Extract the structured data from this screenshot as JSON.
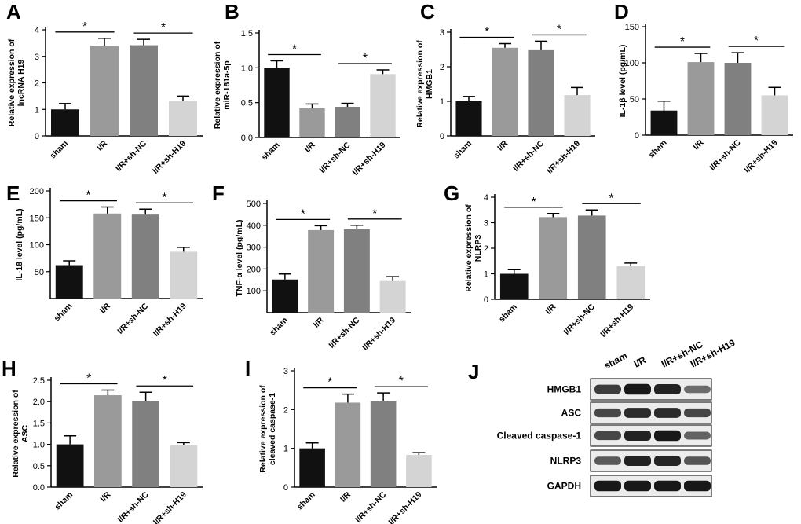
{
  "colors": [
    "#111111",
    "#9a9a9a",
    "#808080",
    "#d4d4d4"
  ],
  "chart_data": [
    {
      "panel": "A",
      "type": "bar",
      "categories": [
        "sham",
        "I/R",
        "I/R+sh-NC",
        "I/R+sh-H19"
      ],
      "values": [
        1.0,
        3.4,
        3.42,
        1.32
      ],
      "errors": [
        0.22,
        0.28,
        0.22,
        0.18
      ],
      "ylabel_lines": [
        "Relative expression of",
        "lncRNA H19"
      ],
      "ylim": [
        0,
        4
      ],
      "yticks": [
        0,
        1,
        2,
        3,
        4
      ],
      "ytick_labels": [
        "0",
        "1",
        "2",
        "3",
        "4"
      ],
      "significance": [
        {
          "from": 0,
          "to": 1,
          "label": "*"
        },
        {
          "from": 2,
          "to": 3,
          "label": "*"
        }
      ]
    },
    {
      "panel": "B",
      "type": "bar",
      "categories": [
        "sham",
        "I/R",
        "I/R+sh-NC",
        "I/R+sh-H19"
      ],
      "values": [
        1.0,
        0.42,
        0.44,
        0.91
      ],
      "errors": [
        0.1,
        0.06,
        0.05,
        0.06
      ],
      "ylabel_lines": [
        "Relative expression of",
        "miR-181a-5p"
      ],
      "ylim": [
        0,
        1.5
      ],
      "yticks": [
        0,
        0.5,
        1.0,
        1.5
      ],
      "ytick_labels": [
        "0.0",
        "0.5",
        "1.0",
        "1.5"
      ],
      "significance": [
        {
          "from": 0,
          "to": 1,
          "label": "*"
        },
        {
          "from": 2,
          "to": 3,
          "label": "*"
        }
      ]
    },
    {
      "panel": "C",
      "type": "bar",
      "categories": [
        "sham",
        "I/R",
        "I/R+sh-NC",
        "I/R+sh-H19"
      ],
      "values": [
        1.0,
        2.55,
        2.48,
        1.18
      ],
      "errors": [
        0.14,
        0.12,
        0.26,
        0.22
      ],
      "ylabel_lines": [
        "Relative expression of",
        "HMGB1"
      ],
      "ylim": [
        0,
        3
      ],
      "yticks": [
        0,
        1,
        2,
        3
      ],
      "ytick_labels": [
        "0",
        "1",
        "2",
        "3"
      ],
      "significance": [
        {
          "from": 0,
          "to": 1,
          "label": "*"
        },
        {
          "from": 2,
          "to": 3,
          "label": "*"
        }
      ]
    },
    {
      "panel": "D",
      "type": "bar",
      "categories": [
        "sham",
        "I/R",
        "I/R+sh-NC",
        "I/R+sh-H19"
      ],
      "values": [
        34,
        101,
        100,
        55
      ],
      "errors": [
        13,
        12,
        14,
        11
      ],
      "ylabel_lines": [
        "IL-1β level (pg/mL)"
      ],
      "ylim": [
        0,
        150
      ],
      "yticks": [
        0,
        50,
        100,
        150
      ],
      "ytick_labels": [
        "0",
        "50",
        "100",
        "150"
      ],
      "significance": [
        {
          "from": 0,
          "to": 1,
          "label": "*"
        },
        {
          "from": 2,
          "to": 3,
          "label": "*"
        }
      ]
    },
    {
      "panel": "E",
      "type": "bar",
      "categories": [
        "sham",
        "I/R",
        "I/R+sh-NC",
        "I/R+sh-H19"
      ],
      "values": [
        62,
        158,
        156,
        87
      ],
      "errors": [
        8,
        12,
        10,
        8
      ],
      "ylabel_lines": [
        "IL-18 level (pg/mL)"
      ],
      "ylim": [
        0,
        200
      ],
      "yticks": [
        50,
        100,
        150,
        200
      ],
      "ytick_labels": [
        "50",
        "100",
        "150",
        "200"
      ],
      "significance": [
        {
          "from": 0,
          "to": 1,
          "label": "*"
        },
        {
          "from": 2,
          "to": 3,
          "label": "*"
        }
      ]
    },
    {
      "panel": "F",
      "type": "bar",
      "categories": [
        "sham",
        "I/R",
        "I/R+sh-NC",
        "I/R+sh-H19"
      ],
      "values": [
        152,
        378,
        382,
        145
      ],
      "errors": [
        25,
        20,
        18,
        20
      ],
      "ylabel_lines": [
        "TNF-α level (pg/mL)"
      ],
      "ylim": [
        0,
        500
      ],
      "yticks": [
        100,
        200,
        300,
        400,
        500
      ],
      "ytick_labels": [
        "100",
        "200",
        "300",
        "400",
        "500"
      ],
      "significance": [
        {
          "from": 0,
          "to": 1,
          "label": "*"
        },
        {
          "from": 2,
          "to": 3,
          "label": "*"
        }
      ]
    },
    {
      "panel": "G",
      "type": "bar",
      "categories": [
        "sham",
        "I/R",
        "I/R+sh-NC",
        "I/R+sh-H19"
      ],
      "values": [
        1.0,
        3.22,
        3.28,
        1.3
      ],
      "errors": [
        0.16,
        0.14,
        0.22,
        0.12
      ],
      "ylabel_lines": [
        "Relative expression of",
        "NLRP3"
      ],
      "ylim": [
        0,
        4
      ],
      "yticks": [
        0,
        1,
        2,
        3,
        4
      ],
      "ytick_labels": [
        "0",
        "1",
        "2",
        "3",
        "4"
      ],
      "significance": [
        {
          "from": 0,
          "to": 1,
          "label": "*"
        },
        {
          "from": 2,
          "to": 3,
          "label": "*"
        }
      ]
    },
    {
      "panel": "H",
      "type": "bar",
      "categories": [
        "sham",
        "I/R",
        "I/R+sh-NC",
        "I/R+sh-H19"
      ],
      "values": [
        1.0,
        2.15,
        2.02,
        0.98
      ],
      "errors": [
        0.2,
        0.12,
        0.2,
        0.06
      ],
      "ylabel_lines": [
        "Relative expression of",
        "ASC"
      ],
      "ylim": [
        0,
        2.5
      ],
      "yticks": [
        0,
        0.5,
        1.0,
        1.5,
        2.0,
        2.5
      ],
      "ytick_labels": [
        "0.0",
        "0.5",
        "1.0",
        "1.5",
        "2.0",
        "2.5"
      ],
      "significance": [
        {
          "from": 0,
          "to": 1,
          "label": "*"
        },
        {
          "from": 2,
          "to": 3,
          "label": "*"
        }
      ]
    },
    {
      "panel": "I",
      "type": "bar",
      "categories": [
        "sham",
        "I/R",
        "I/R+sh-NC",
        "I/R+sh-H19"
      ],
      "values": [
        1.0,
        2.18,
        2.23,
        0.83
      ],
      "errors": [
        0.14,
        0.22,
        0.2,
        0.06
      ],
      "ylabel_lines": [
        "Relative expression of",
        "cleaved caspase-1"
      ],
      "ylim": [
        0,
        3
      ],
      "yticks": [
        0,
        1,
        2,
        3
      ],
      "ytick_labels": [
        "0",
        "1",
        "2",
        "3"
      ],
      "significance": [
        {
          "from": 0,
          "to": 1,
          "label": "*"
        },
        {
          "from": 2,
          "to": 3,
          "label": "*"
        }
      ]
    }
  ],
  "blot": {
    "panel": "J",
    "lanes": [
      "sham",
      "I/R",
      "I/R+sh-NC",
      "I/R+sh-H19"
    ],
    "bands": [
      {
        "label": "HMGB1",
        "intensity": [
          0.75,
          0.95,
          0.9,
          0.5
        ]
      },
      {
        "label": "ASC",
        "intensity": [
          0.7,
          0.85,
          0.85,
          0.7
        ]
      },
      {
        "label": "Cleaved caspase-1",
        "intensity": [
          0.7,
          0.9,
          0.95,
          0.55
        ]
      },
      {
        "label": "NLRP3",
        "intensity": [
          0.6,
          0.9,
          0.88,
          0.62
        ]
      },
      {
        "label": "GAPDH",
        "intensity": [
          0.95,
          0.95,
          0.95,
          0.95
        ]
      }
    ]
  }
}
